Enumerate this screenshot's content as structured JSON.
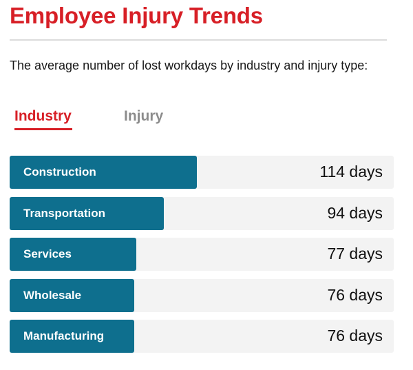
{
  "header": {
    "title": "Employee Injury Trends",
    "subtitle": "The average number of lost workdays by industry and injury type:"
  },
  "tabs": [
    {
      "label": "Industry",
      "active": true
    },
    {
      "label": "Injury",
      "active": false
    }
  ],
  "unit": "days",
  "colors": {
    "accent": "#d71f26",
    "bar": "#0e6f8e",
    "track": "#f3f3f3",
    "inactive_tab": "#8c8c8c"
  },
  "chart_data": {
    "type": "bar",
    "categories": [
      "Construction",
      "Transportation",
      "Services",
      "Wholesale",
      "Manufacturing"
    ],
    "values": [
      114,
      94,
      77,
      76,
      76
    ],
    "value_labels": [
      "114 days",
      "94 days",
      "77 days",
      "76 days",
      "76 days"
    ]
  }
}
